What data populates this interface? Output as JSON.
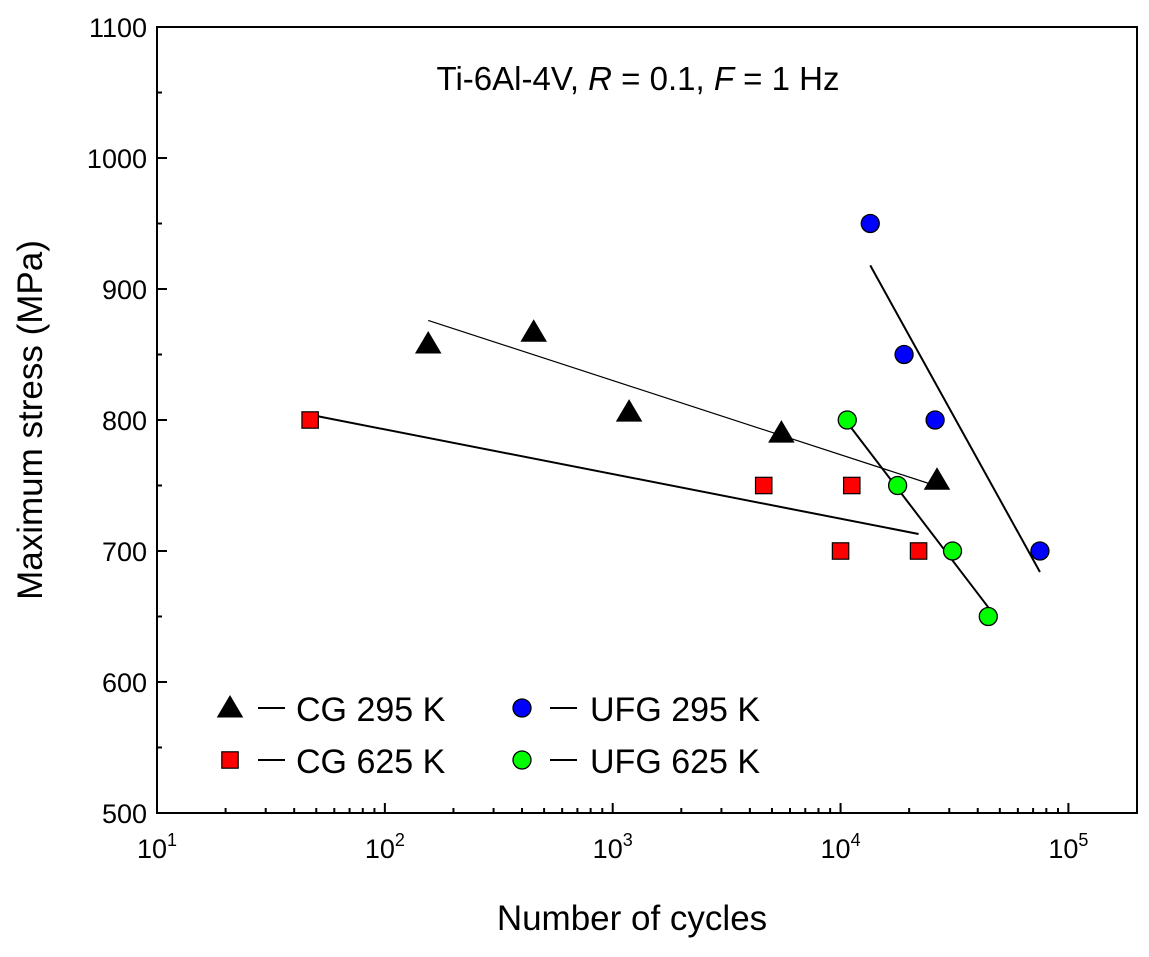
{
  "chart_data": {
    "type": "scatter",
    "title": {
      "material": "Ti-6Al-4V",
      "r_label": "R",
      "r_value": " = 0.1",
      "f_label": "F",
      "f_value": " = 1 Hz"
    },
    "xlabel": "Number of cycles",
    "ylabel": "Maximum stress (MPa)",
    "x_scale": "log",
    "xlim": [
      10,
      200000
    ],
    "ylim": [
      500,
      1100
    ],
    "x_ticks": [
      {
        "base": "10",
        "exp": "1",
        "value": 10
      },
      {
        "base": "10",
        "exp": "2",
        "value": 100
      },
      {
        "base": "10",
        "exp": "3",
        "value": 1000
      },
      {
        "base": "10",
        "exp": "4",
        "value": 10000
      },
      {
        "base": "10",
        "exp": "5",
        "value": 100000
      }
    ],
    "y_ticks": [
      "500",
      "600",
      "700",
      "800",
      "900",
      "1000",
      "1100"
    ],
    "legend_position": "bottom-left",
    "series": [
      {
        "name": "CG 295 K",
        "marker": "triangle",
        "color": "#000000",
        "points": [
          [
            155,
            858
          ],
          [
            450,
            867
          ],
          [
            1180,
            806
          ],
          [
            5500,
            790
          ],
          [
            26500,
            754
          ]
        ],
        "fit": [
          [
            155,
            876
          ],
          [
            26000,
            750
          ]
        ]
      },
      {
        "name": "CG 625 K",
        "marker": "square",
        "color": "#ff0000",
        "points": [
          [
            47,
            800
          ],
          [
            4600,
            750
          ],
          [
            11200,
            750
          ],
          [
            10000,
            700
          ],
          [
            22000,
            700
          ]
        ],
        "fit": [
          [
            47,
            804
          ],
          [
            22000,
            713
          ]
        ]
      },
      {
        "name": "UFG 295 K",
        "marker": "circle",
        "color": "#0000ff",
        "points": [
          [
            13500,
            950
          ],
          [
            19000,
            850
          ],
          [
            26000,
            800
          ],
          [
            75000,
            700
          ]
        ],
        "fit": [
          [
            13500,
            918
          ],
          [
            75000,
            684
          ]
        ]
      },
      {
        "name": "UFG 625 K",
        "marker": "circle",
        "color": "#00ff00",
        "points": [
          [
            10700,
            800
          ],
          [
            17800,
            750
          ],
          [
            31000,
            700
          ],
          [
            44500,
            650
          ]
        ],
        "fit": [
          [
            10700,
            798
          ],
          [
            44500,
            657
          ]
        ]
      }
    ]
  }
}
